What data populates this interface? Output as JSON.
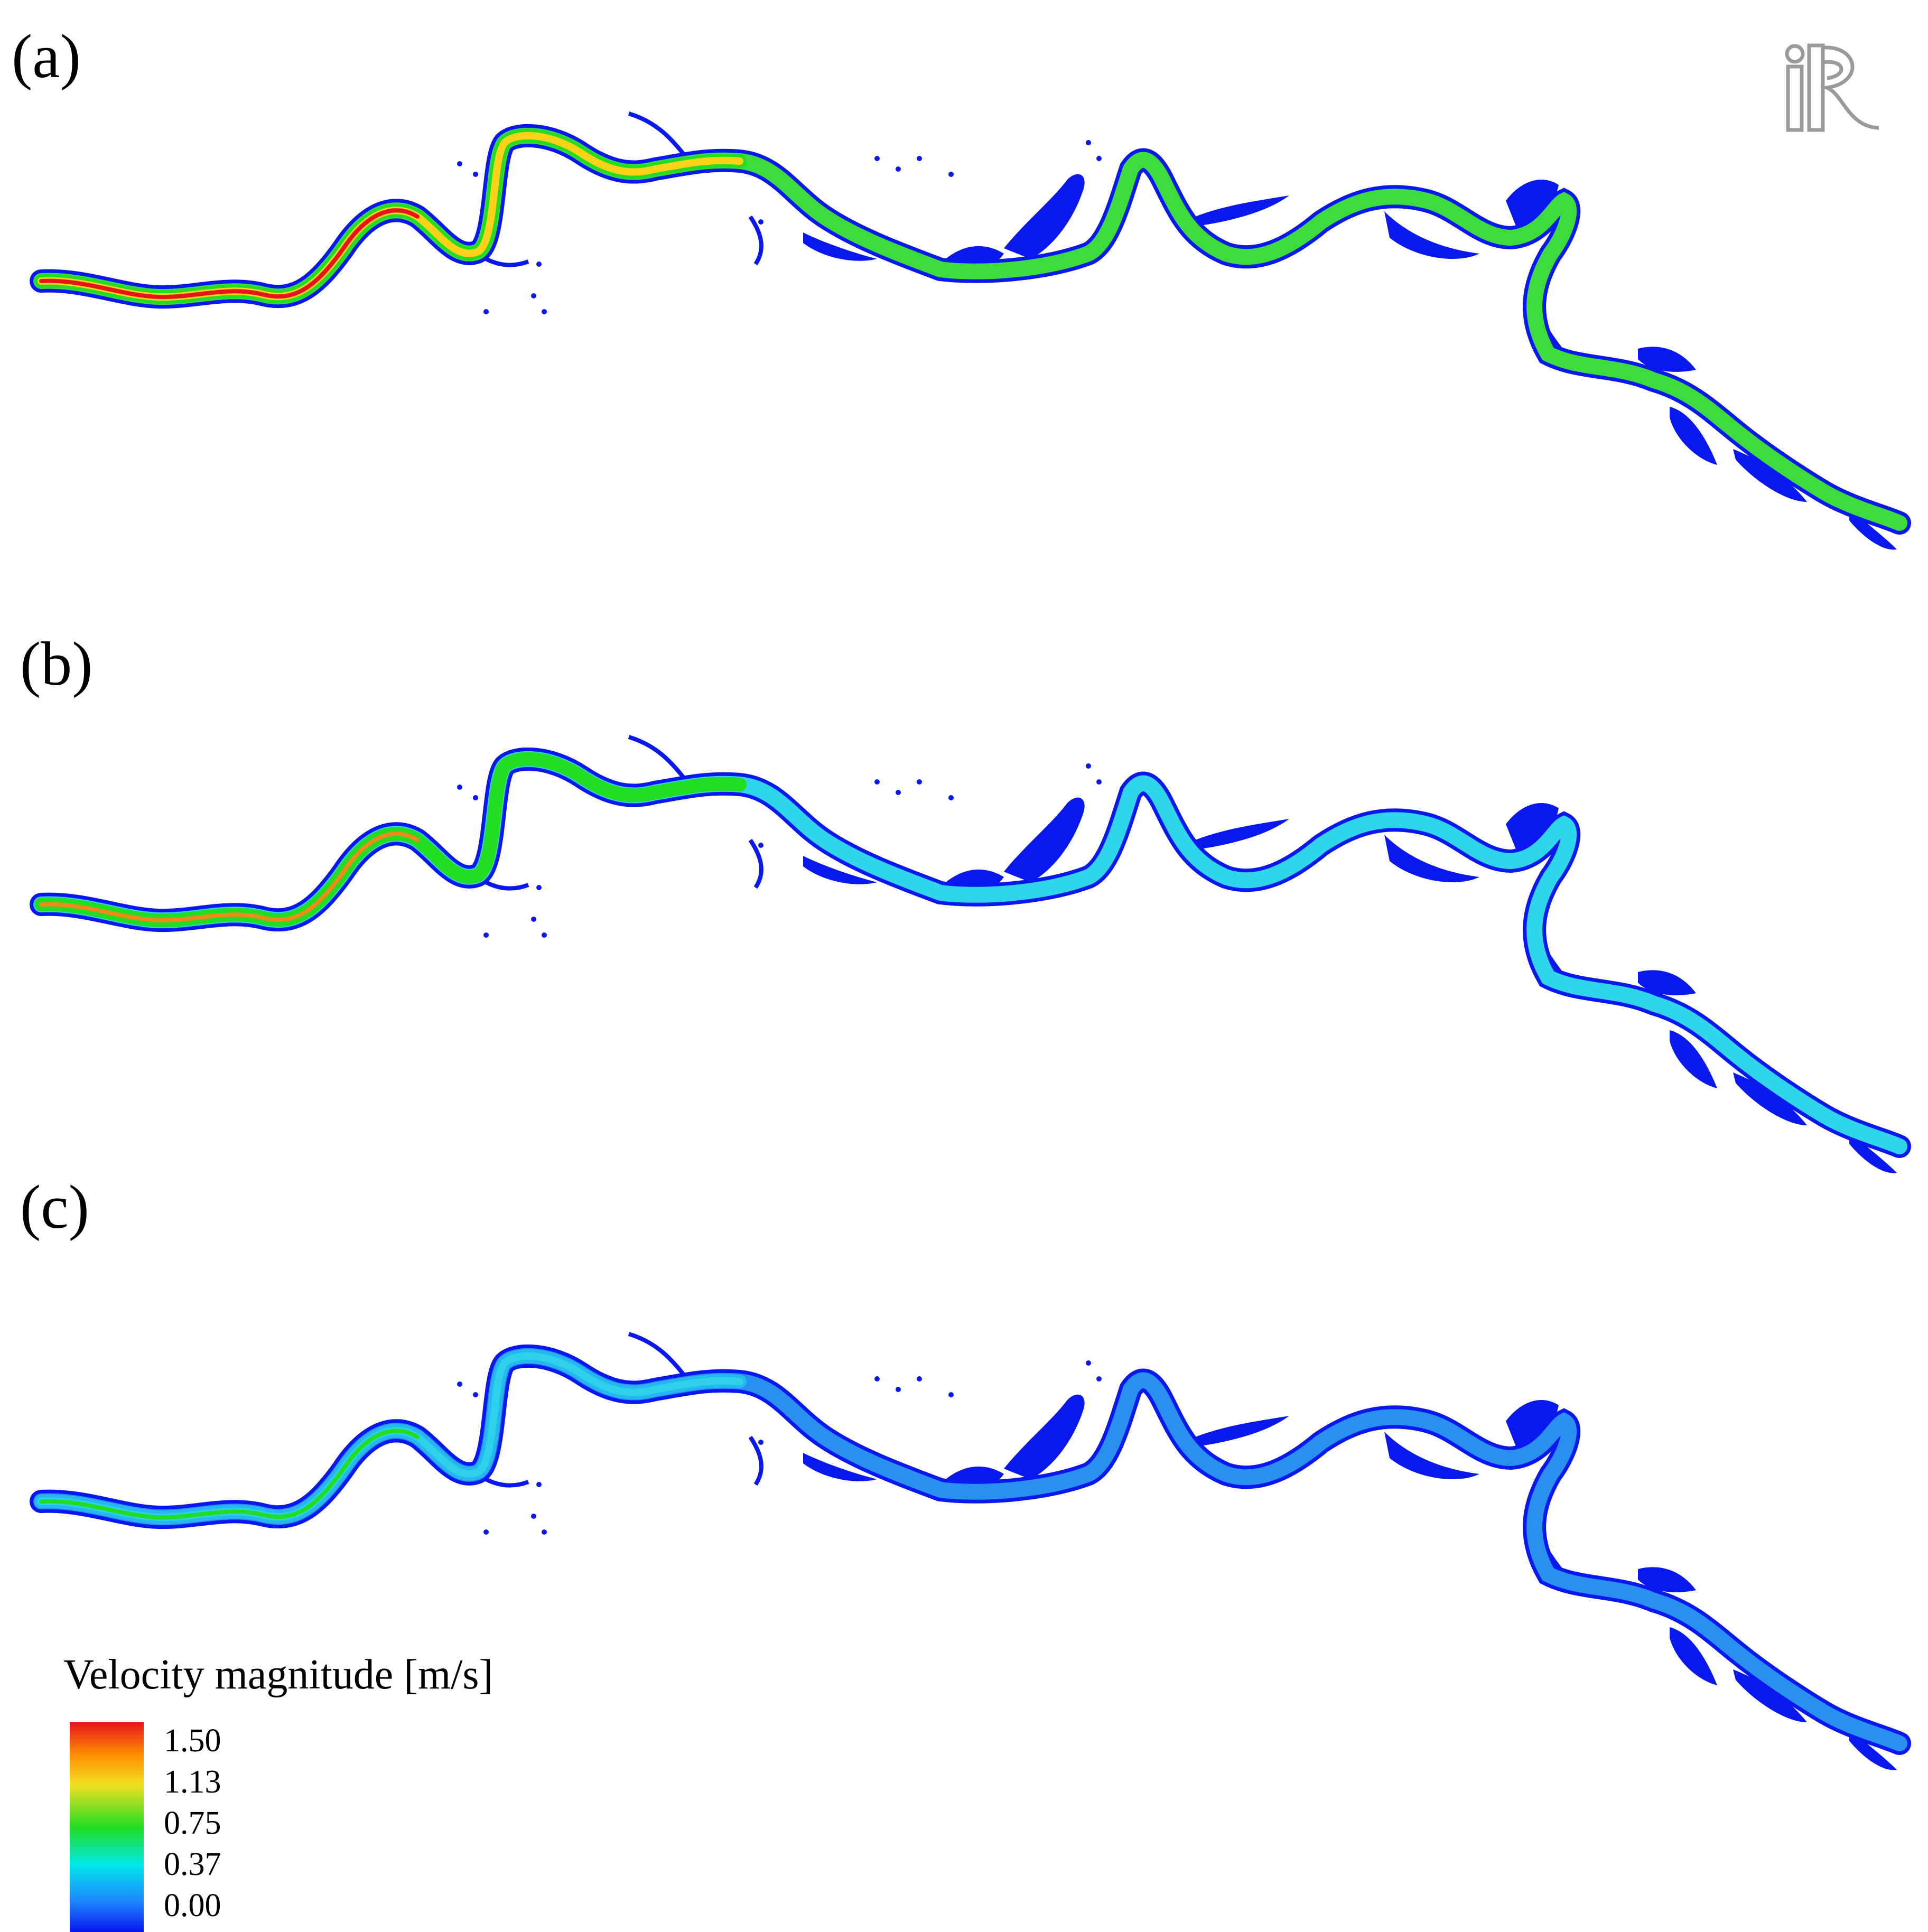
{
  "panels": [
    {
      "label": "(a)"
    },
    {
      "label": "(b)"
    },
    {
      "label": "(c)"
    }
  ],
  "logo": {
    "icon": "iric-logo-icon",
    "text": "iRIC"
  },
  "legend": {
    "title": "Velocity magnitude [m/s]",
    "ticks": [
      "1.50",
      "1.13",
      "0.75",
      "0.37",
      "0.00"
    ],
    "colors": {
      "max": "#e8141c",
      "high": "#f0e020",
      "mid": "#22dd22",
      "low": "#00e8e8",
      "min": "#0a18f0"
    }
  },
  "scenario_colors": {
    "a": {
      "upstream": "#e8141c",
      "core": "#ffd21a",
      "mid": "#22dd22",
      "downstream": "#3ddc3d",
      "floodplain": "#0a18f0"
    },
    "b": {
      "upstream": "#f08a18",
      "core": "#22dd22",
      "mid": "#22dd22",
      "downstream": "#2fd5ea",
      "floodplain": "#0a18f0"
    },
    "c": {
      "upstream": "#22dd22",
      "core": "#2fd0ea",
      "mid": "#24b8f0",
      "downstream": "#2a90f0",
      "floodplain": "#0a18f0"
    }
  }
}
